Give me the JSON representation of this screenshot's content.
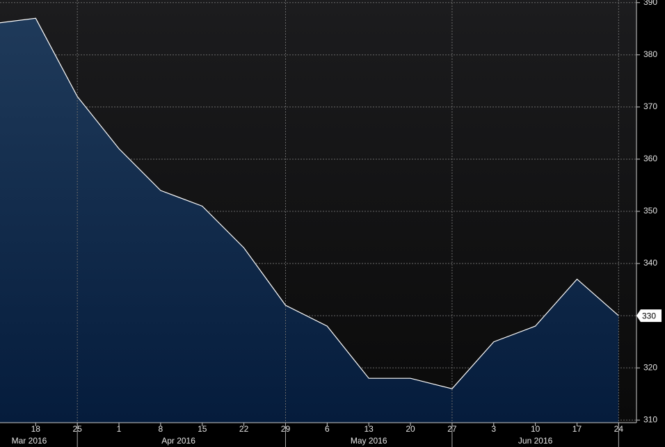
{
  "chart_data": {
    "type": "area",
    "x": [
      "2016-03-11",
      "2016-03-18",
      "2016-03-25",
      "2016-04-01",
      "2016-04-08",
      "2016-04-15",
      "2016-04-22",
      "2016-04-29",
      "2016-05-06",
      "2016-05-13",
      "2016-05-20",
      "2016-05-27",
      "2016-06-03",
      "2016-06-10",
      "2016-06-17",
      "2016-06-24"
    ],
    "values": [
      386,
      387,
      372,
      362,
      354,
      351,
      343,
      332,
      328,
      318,
      318,
      316,
      325,
      328,
      337,
      330
    ],
    "color": "#ffffff",
    "ylim": [
      309.5,
      390.5
    ],
    "yticks": [
      310,
      320,
      330,
      340,
      350,
      360,
      370,
      380,
      390
    ],
    "xlim": [
      "2016-03-12",
      "2016-06-27"
    ],
    "xticks": [
      {
        "value": "2016-03-18",
        "label": "18"
      },
      {
        "value": "2016-03-25",
        "label": "25"
      },
      {
        "value": "2016-04-01",
        "label": "1"
      },
      {
        "value": "2016-04-08",
        "label": "8"
      },
      {
        "value": "2016-04-15",
        "label": "15"
      },
      {
        "value": "2016-04-22",
        "label": "22"
      },
      {
        "value": "2016-04-29",
        "label": "29"
      },
      {
        "value": "2016-05-06",
        "label": "6"
      },
      {
        "value": "2016-05-13",
        "label": "13"
      },
      {
        "value": "2016-05-20",
        "label": "20"
      },
      {
        "value": "2016-05-27",
        "label": "27"
      },
      {
        "value": "2016-06-03",
        "label": "3"
      },
      {
        "value": "2016-06-10",
        "label": "10"
      },
      {
        "value": "2016-06-17",
        "label": "17"
      },
      {
        "value": "2016-06-24",
        "label": "24"
      }
    ],
    "month_labels": [
      {
        "value": "2016-03-16",
        "label": "Mar 2016"
      },
      {
        "value": "2016-04-11",
        "label": "Apr 2016"
      },
      {
        "value": "2016-05-13",
        "label": "May 2016"
      },
      {
        "value": "2016-06-10",
        "label": "Jun 2016"
      }
    ],
    "grid": true
  }
}
